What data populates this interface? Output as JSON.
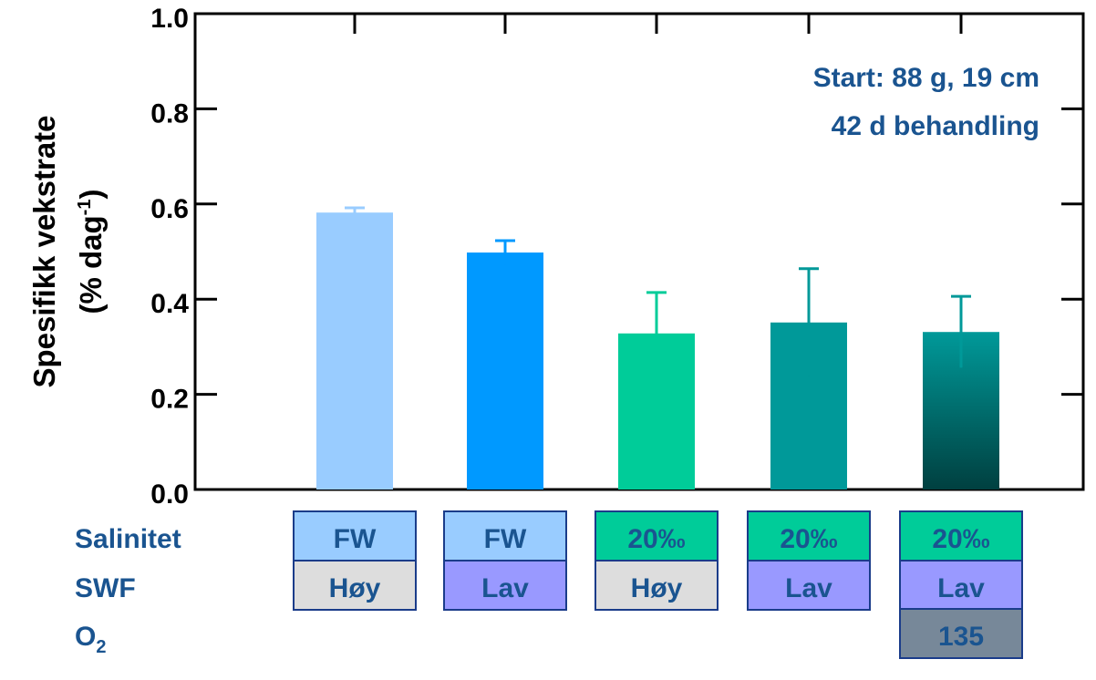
{
  "chart_data": {
    "type": "bar",
    "ylabel": {
      "lines": [
        "Spesifikk vekstrate"
      ],
      "unit": {
        "text": "(% dag",
        "sup": "-1",
        "tail": ")"
      }
    },
    "annotation": [
      "Start: 88 g, 19 cm",
      "42 d behandling"
    ],
    "values": [
      0.582,
      0.498,
      0.328,
      0.351,
      0.331
    ],
    "errors": [
      0.01,
      0.025,
      0.086,
      0.113,
      0.075
    ],
    "colors": [
      "#99ccff",
      "#0099ff",
      "#00cc99",
      "#009999",
      {
        "from": "#009999",
        "to": "#004040"
      }
    ],
    "ylim": [
      0,
      1
    ],
    "yticks": [
      {
        "value": 0,
        "label": "0.0"
      },
      {
        "value": 0.2,
        "label": "0.2"
      },
      {
        "value": 0.4,
        "label": "0.4"
      },
      {
        "value": 0.6,
        "label": "0.6"
      },
      {
        "value": 0.8,
        "label": "0.8"
      },
      {
        "value": 1,
        "label": "1.0"
      }
    ]
  },
  "treatment_table": {
    "rows": [
      {
        "label": "Salinitet",
        "cells": [
          {
            "text": "FW",
            "color": "#99ccff"
          },
          {
            "text": "FW",
            "color": "#99ccff"
          },
          {
            "text": "20‰",
            "color": "#00cc99"
          },
          {
            "text": "20‰",
            "color": "#00cc99"
          },
          {
            "text": "20‰",
            "color": "#00cc99"
          }
        ]
      },
      {
        "label": "SWF",
        "cells": [
          {
            "text": "Høy",
            "color": "#dddddd"
          },
          {
            "text": "Lav",
            "color": "#9999ff"
          },
          {
            "text": "Høy",
            "color": "#dddddd"
          },
          {
            "text": "Lav",
            "color": "#9999ff"
          },
          {
            "text": "Lav",
            "color": "#9999ff"
          }
        ]
      },
      {
        "label": "O",
        "sub": "2",
        "cells": [
          null,
          null,
          null,
          null,
          {
            "text": "135",
            "color": "#778899"
          }
        ]
      }
    ]
  }
}
